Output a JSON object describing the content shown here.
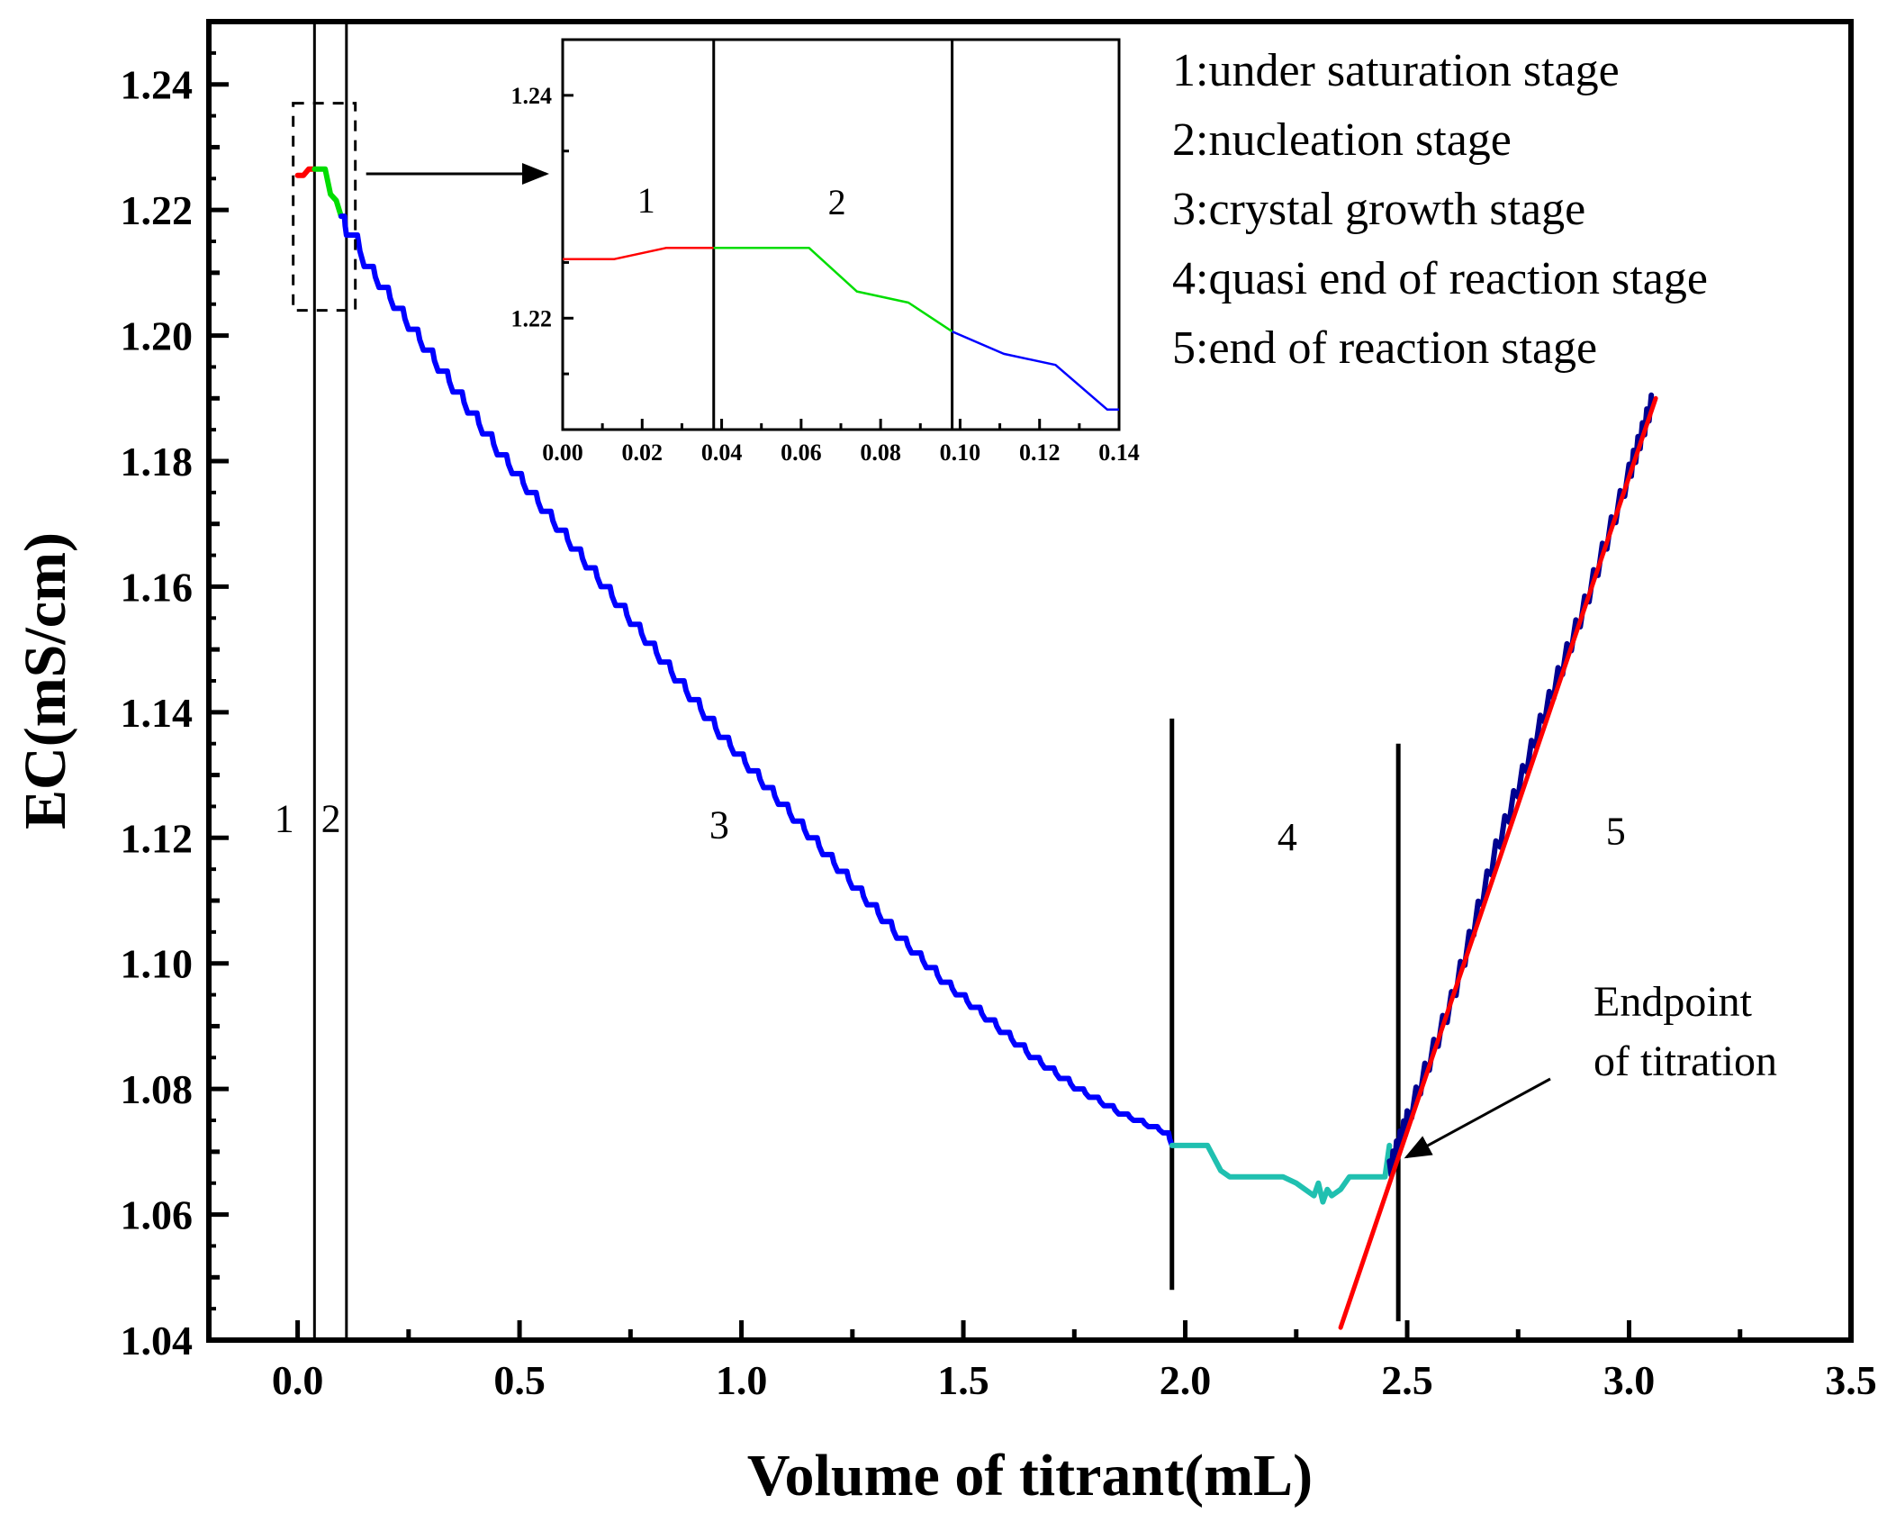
{
  "chart_data": [
    {
      "id": "main",
      "type": "line",
      "xlabel": "Volume of titrant(mL)",
      "ylabel": "EC(mS/cm)",
      "xlim": [
        -0.2,
        3.5
      ],
      "ylim": [
        1.04,
        1.25
      ],
      "xticks": [
        {
          "value": 0.0,
          "label": "0.0"
        },
        {
          "value": 0.5,
          "label": "0.5"
        },
        {
          "value": 1.0,
          "label": "1.0"
        },
        {
          "value": 1.5,
          "label": "1.5"
        },
        {
          "value": 2.0,
          "label": "2.0"
        },
        {
          "value": 2.5,
          "label": "2.5"
        },
        {
          "value": 3.0,
          "label": "3.0"
        },
        {
          "value": 3.5,
          "label": "3.5"
        }
      ],
      "yticks": [
        {
          "value": 1.04,
          "label": "1.04"
        },
        {
          "value": 1.06,
          "label": "1.06"
        },
        {
          "value": 1.08,
          "label": "1.08"
        },
        {
          "value": 1.1,
          "label": "1.10"
        },
        {
          "value": 1.12,
          "label": "1.12"
        },
        {
          "value": 1.14,
          "label": "1.14"
        },
        {
          "value": 1.16,
          "label": "1.16"
        },
        {
          "value": 1.18,
          "label": "1.18"
        },
        {
          "value": 1.2,
          "label": "1.20"
        },
        {
          "value": 1.22,
          "label": "1.22"
        },
        {
          "value": 1.24,
          "label": "1.24"
        }
      ],
      "series": [
        {
          "name": "stage 1",
          "color": "#ff0000",
          "x": [
            0.0,
            0.013,
            0.025,
            0.038
          ],
          "y": [
            1.2255,
            1.2255,
            1.2265,
            1.2265
          ]
        },
        {
          "name": "stage 2",
          "color": "#00dd00",
          "x": [
            0.038,
            0.062,
            0.074,
            0.087,
            0.098
          ],
          "y": [
            1.2265,
            1.2265,
            1.2225,
            1.2215,
            1.219
          ]
        },
        {
          "name": "stage 3",
          "color": "#0000ff",
          "staircase": true,
          "x": [
            0.098,
            0.11,
            0.15,
            0.25,
            0.35,
            0.45,
            0.55,
            0.65,
            0.75,
            0.85,
            0.95,
            1.05,
            1.15,
            1.25,
            1.35,
            1.45,
            1.55,
            1.65,
            1.75,
            1.85,
            1.95,
            1.97
          ],
          "y": [
            1.219,
            1.216,
            1.211,
            1.201,
            1.191,
            1.181,
            1.172,
            1.163,
            1.154,
            1.145,
            1.136,
            1.128,
            1.12,
            1.112,
            1.104,
            1.097,
            1.091,
            1.085,
            1.08,
            1.076,
            1.073,
            1.071
          ]
        },
        {
          "name": "stage 4",
          "color": "#20c0b0",
          "x": [
            1.97,
            2.05,
            2.08,
            2.1,
            2.22,
            2.25,
            2.27,
            2.29,
            2.3,
            2.31,
            2.32,
            2.33,
            2.35,
            2.37,
            2.45,
            2.46
          ],
          "y": [
            1.071,
            1.071,
            1.067,
            1.066,
            1.066,
            1.065,
            1.064,
            1.063,
            1.065,
            1.062,
            1.064,
            1.063,
            1.064,
            1.066,
            1.066,
            1.071
          ]
        },
        {
          "name": "stage 5",
          "color": "#000090",
          "jagged": true,
          "x": [
            2.46,
            2.5,
            2.6,
            2.7,
            2.8,
            2.9,
            3.0,
            3.05
          ],
          "y": [
            1.067,
            1.075,
            1.094,
            1.118,
            1.138,
            1.157,
            1.178,
            1.189
          ]
        },
        {
          "name": "fit line",
          "color": "#ff0000",
          "x": [
            2.35,
            3.06
          ],
          "y": [
            1.042,
            1.19
          ]
        }
      ],
      "vlines": [
        {
          "x": 0.038,
          "y0": 1.04,
          "y1": 1.25
        },
        {
          "x": 0.11,
          "y0": 1.04,
          "y1": 1.25
        },
        {
          "x": 1.97,
          "y0": 1.048,
          "y1": 1.139
        },
        {
          "x": 2.48,
          "y0": 1.043,
          "y1": 1.135
        }
      ],
      "stage_labels": [
        {
          "text": "1",
          "x": -0.03,
          "y": 1.121
        },
        {
          "text": "2",
          "x": 0.075,
          "y": 1.121
        },
        {
          "text": "3",
          "x": 0.95,
          "y": 1.12
        },
        {
          "text": "4",
          "x": 2.23,
          "y": 1.118
        },
        {
          "text": "5",
          "x": 2.97,
          "y": 1.119
        }
      ],
      "legend": [
        "1:under saturation stage",
        "2:nucleation stage",
        "3:crystal growth stage",
        "4:quasi end of reaction stage",
        "5:end of reaction stage"
      ],
      "annotations": [
        {
          "lines": [
            "Endpoint",
            "of titration"
          ],
          "arrow_to": {
            "x": 2.47,
            "y": 1.068
          }
        }
      ],
      "zoom_box": {
        "x0": -0.01,
        "x1": 0.13,
        "y0": 1.204,
        "y1": 1.237
      }
    },
    {
      "id": "inset",
      "type": "line",
      "xlim": [
        0.0,
        0.14
      ],
      "ylim": [
        1.21,
        1.245
      ],
      "xticks": [
        {
          "value": 0.0,
          "label": "0.00"
        },
        {
          "value": 0.02,
          "label": "0.02"
        },
        {
          "value": 0.04,
          "label": "0.04"
        },
        {
          "value": 0.06,
          "label": "0.06"
        },
        {
          "value": 0.08,
          "label": "0.08"
        },
        {
          "value": 0.1,
          "label": "0.10"
        },
        {
          "value": 0.12,
          "label": "0.12"
        },
        {
          "value": 0.14,
          "label": "0.14"
        }
      ],
      "yticks": [
        {
          "value": 1.22,
          "label": "1.22"
        },
        {
          "value": 1.24,
          "label": "1.24"
        }
      ],
      "series": [
        {
          "name": "stage 1",
          "color": "#ff0000",
          "x": [
            0.0,
            0.013,
            0.026,
            0.038
          ],
          "y": [
            1.2253,
            1.2253,
            1.2263,
            1.2263
          ]
        },
        {
          "name": "stage 2",
          "color": "#00dd00",
          "x": [
            0.038,
            0.062,
            0.074,
            0.087,
            0.098
          ],
          "y": [
            1.2263,
            1.2263,
            1.2224,
            1.2214,
            1.2188
          ]
        },
        {
          "name": "stage 3",
          "color": "#0000ff",
          "x": [
            0.098,
            0.111,
            0.124,
            0.137,
            0.14
          ],
          "y": [
            1.2188,
            1.2168,
            1.2158,
            1.2118,
            1.2118
          ]
        }
      ],
      "vlines": [
        {
          "x": 0.038,
          "y0": 1.21,
          "y1": 1.245
        },
        {
          "x": 0.098,
          "y0": 1.21,
          "y1": 1.245
        }
      ],
      "stage_labels": [
        {
          "text": "1",
          "x": 0.021,
          "y": 1.2295
        },
        {
          "text": "2",
          "x": 0.069,
          "y": 1.2293
        }
      ]
    }
  ]
}
